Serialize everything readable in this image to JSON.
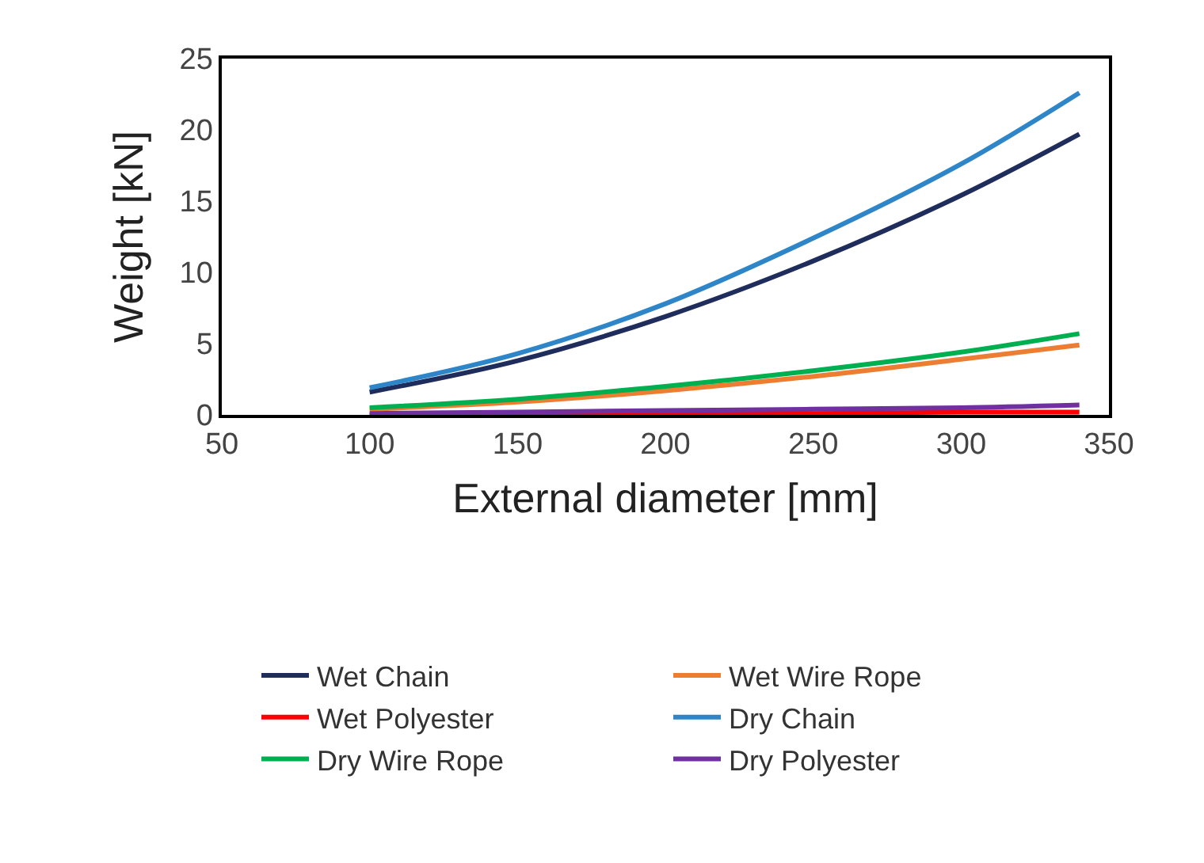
{
  "chart_data": {
    "type": "line",
    "xlabel": "External diameter [mm]",
    "ylabel": "Weight [kN]",
    "x": [
      100,
      150,
      200,
      250,
      300,
      340
    ],
    "xlim": [
      50,
      350
    ],
    "xticks": [
      50,
      100,
      150,
      200,
      250,
      300,
      350
    ],
    "ylim": [
      0,
      25
    ],
    "yticks": [
      0,
      5,
      10,
      15,
      20,
      25
    ],
    "legend": "bottom",
    "marker": "none",
    "line_style": "solid",
    "series": [
      {
        "name": "Wet Chain",
        "color": "#1f2d5c",
        "values": [
          1.6,
          3.8,
          6.9,
          10.8,
          15.4,
          19.7
        ]
      },
      {
        "name": "Wet Wire Rope",
        "color": "#ed7d31",
        "values": [
          0.4,
          0.9,
          1.7,
          2.7,
          3.9,
          4.9
        ]
      },
      {
        "name": "Wet Polyester",
        "color": "#ff0000",
        "values": [
          0.0,
          0.0,
          0.1,
          0.1,
          0.2,
          0.2
        ]
      },
      {
        "name": "Dry Chain",
        "color": "#2e86c8",
        "values": [
          1.9,
          4.3,
          7.8,
          12.4,
          17.6,
          22.6
        ]
      },
      {
        "name": "Dry Wire Rope",
        "color": "#00b050",
        "values": [
          0.5,
          1.1,
          2.0,
          3.1,
          4.4,
          5.7
        ]
      },
      {
        "name": "Dry Polyester",
        "color": "#7030a0",
        "values": [
          0.1,
          0.2,
          0.3,
          0.4,
          0.5,
          0.7
        ]
      }
    ]
  }
}
